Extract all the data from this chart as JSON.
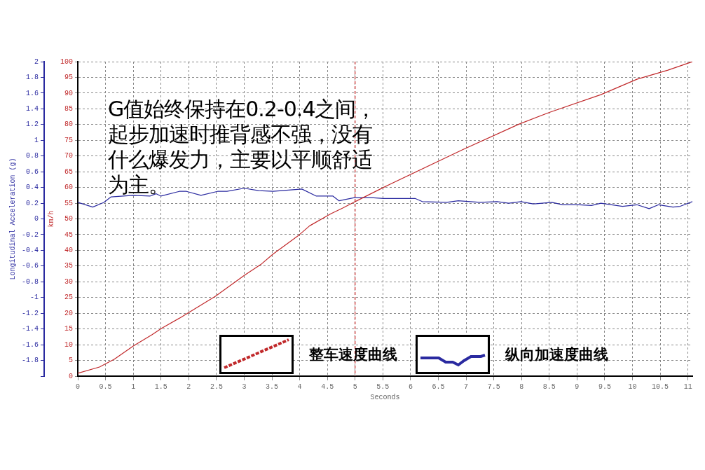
{
  "chart_data": {
    "type": "line",
    "xlabel": "Seconds",
    "ylabel": "Longitudinal Acceleration (g)",
    "y2label": "km/h",
    "annotations": [
      "G值始终保持在0.2-0.4之间，起步加速时推背感不强，没有什么爆发力，主要以平顺舒适为主。"
    ],
    "xlim": [
      0,
      11.08
    ],
    "xticks": [
      0,
      0.5,
      1,
      1.5,
      2,
      2.5,
      3,
      3.5,
      4,
      4.5,
      5,
      5.5,
      6,
      6.5,
      7,
      7.5,
      8,
      8.5,
      9,
      9.5,
      10,
      10.5,
      11
    ],
    "ylim": [
      -2,
      2
    ],
    "yticks": [
      {
        "value": -2,
        "label": null
      },
      -1.8,
      -1.6,
      -1.4,
      -1.2,
      -1,
      -0.8,
      -0.6,
      -0.4,
      -0.2,
      0,
      0.2,
      0.4,
      0.6,
      0.8,
      1,
      1.2,
      1.4,
      1.6,
      1.8,
      2
    ],
    "y2lim": [
      0,
      100
    ],
    "y2ticks": [
      0,
      5,
      10,
      15,
      20,
      25,
      30,
      35,
      40,
      45,
      50,
      55,
      60,
      65,
      70,
      75,
      80,
      85,
      90,
      95,
      100
    ],
    "grid": true,
    "legend": "bottom",
    "line_style": "solid",
    "marker": "none",
    "ref_lines": [
      {
        "axis": "x",
        "value": 5,
        "color": "#c00000",
        "line_style": "dashed"
      }
    ],
    "series": [
      {
        "name": "整车速度曲线",
        "color": "#c0282a",
        "axis": "y2",
        "x": [
          0,
          0.39,
          0.66,
          1,
          1.34,
          1.51,
          1.86,
          2.48,
          3,
          3.3,
          3.52,
          3.99,
          4.18,
          4.56,
          4.77,
          4.99,
          5.51,
          5.65,
          6.95,
          7.95,
          8.51,
          9.43,
          10.08,
          10.64,
          11.08
        ],
        "values": [
          0.9,
          2.9,
          5.4,
          9.6,
          13.2,
          15.2,
          18.7,
          25.4,
          32,
          35.5,
          38.8,
          44.9,
          47.8,
          51.6,
          53.4,
          55.4,
          60,
          61.2,
          72.1,
          80.1,
          83.9,
          89.5,
          94.4,
          97.3,
          100
        ]
      },
      {
        "name": "纵向加速度曲线",
        "color": "#2a2aa0",
        "axis": "y",
        "x": [
          0,
          0.27,
          0.47,
          0.6,
          1,
          1.3,
          1.41,
          1.5,
          1.83,
          1.96,
          2.22,
          2.52,
          2.69,
          3,
          3.26,
          3.52,
          4.04,
          4.3,
          4.6,
          4.71,
          4.99,
          5.29,
          5.51,
          6.08,
          6.21,
          6.65,
          6.86,
          7.25,
          7.56,
          7.77,
          7.99,
          8.21,
          8.55,
          8.74,
          9.04,
          9.26,
          9.43,
          9.82,
          10.08,
          10.3,
          10.47,
          10.73,
          10.86,
          11.08
        ],
        "values": [
          0.21,
          0.15,
          0.21,
          0.28,
          0.3,
          0.29,
          0.32,
          0.29,
          0.35,
          0.35,
          0.3,
          0.35,
          0.35,
          0.39,
          0.36,
          0.35,
          0.38,
          0.29,
          0.29,
          0.23,
          0.27,
          0.27,
          0.26,
          0.26,
          0.22,
          0.21,
          0.23,
          0.21,
          0.22,
          0.2,
          0.22,
          0.19,
          0.21,
          0.18,
          0.18,
          0.17,
          0.2,
          0.16,
          0.18,
          0.13,
          0.18,
          0.15,
          0.16,
          0.22
        ]
      }
    ]
  }
}
